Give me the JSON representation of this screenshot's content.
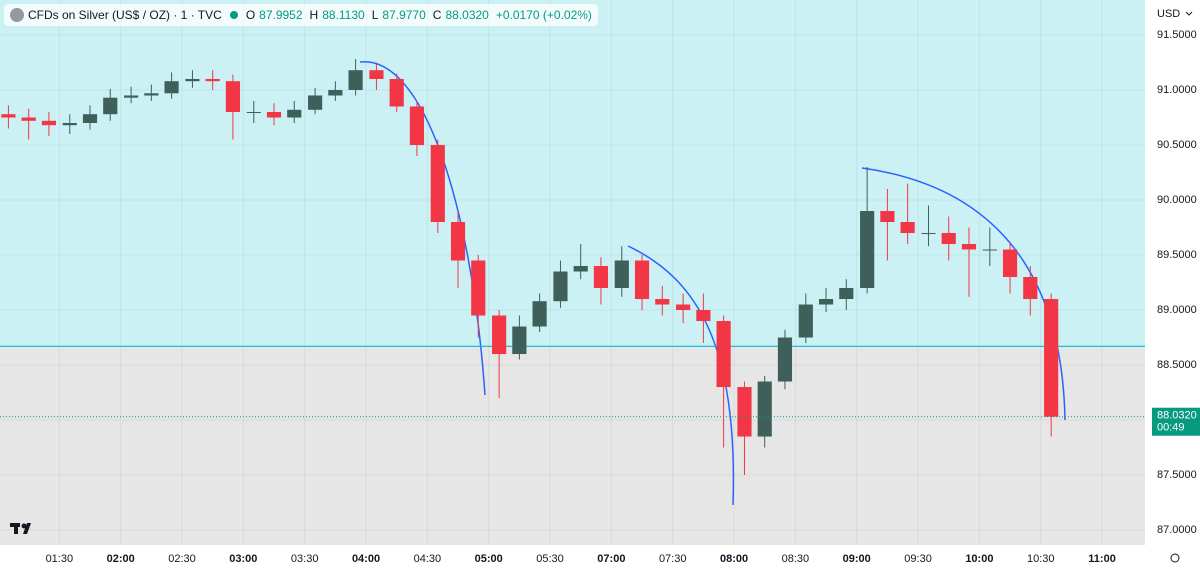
{
  "header": {
    "symbol": "CFDs on Silver (US$ / OZ) · 1 · TVC",
    "ohlc": [
      {
        "label": "O",
        "value": "87.9952"
      },
      {
        "label": "H",
        "value": "88.1130"
      },
      {
        "label": "L",
        "value": "87.9770"
      },
      {
        "label": "C",
        "value": "88.0320"
      }
    ],
    "change": "+0.0170 (+0.02%)",
    "currency": "USD"
  },
  "chart_data": {
    "type": "candlestick",
    "x": [
      0.17,
      0.5,
      0.83,
      1.17,
      1.5,
      1.83,
      2.17,
      2.5,
      2.83,
      3.17,
      3.5,
      3.83,
      4.17,
      4.5,
      4.83,
      5.17,
      5.5,
      5.83,
      6.17,
      6.5,
      6.83,
      7.17,
      7.5,
      7.83,
      8.17,
      8.5,
      8.83,
      9.17,
      9.5,
      9.83,
      10.17,
      10.5,
      10.83,
      11.17,
      11.5,
      11.83,
      12.17,
      12.5,
      12.83,
      13.17,
      13.5,
      13.83,
      14.17,
      14.5,
      14.83,
      15.17,
      15.5,
      15.83,
      16.17,
      16.5,
      16.83,
      17.17
    ],
    "open": [
      90.78,
      90.75,
      90.72,
      90.68,
      90.7,
      90.78,
      90.93,
      90.95,
      90.97,
      91.08,
      91.1,
      91.08,
      90.8,
      90.8,
      90.75,
      90.82,
      90.95,
      91.0,
      91.18,
      91.1,
      90.85,
      90.5,
      89.8,
      89.45,
      88.95,
      88.6,
      88.85,
      89.08,
      89.35,
      89.4,
      89.2,
      89.45,
      89.1,
      89.05,
      89.0,
      88.9,
      88.3,
      87.85,
      88.35,
      88.75,
      89.05,
      89.1,
      89.2,
      89.9,
      89.8,
      89.7,
      89.7,
      89.6,
      89.55,
      89.55,
      89.3,
      89.1
    ],
    "high": [
      90.86,
      90.83,
      90.8,
      90.78,
      90.86,
      91.01,
      91.03,
      91.05,
      91.16,
      91.18,
      91.18,
      91.14,
      90.9,
      90.88,
      90.9,
      91.02,
      91.08,
      91.28,
      91.25,
      91.15,
      90.9,
      90.55,
      89.9,
      89.5,
      89.0,
      88.95,
      89.15,
      89.45,
      89.6,
      89.48,
      89.58,
      89.5,
      89.22,
      89.15,
      89.15,
      88.95,
      88.35,
      88.4,
      88.82,
      89.15,
      89.2,
      89.28,
      90.3,
      90.1,
      90.15,
      89.95,
      89.85,
      89.75,
      89.75,
      89.62,
      89.4,
      89.15
    ],
    "low": [
      90.65,
      90.55,
      90.58,
      90.6,
      90.64,
      90.72,
      90.88,
      90.9,
      90.92,
      91.02,
      91.0,
      90.55,
      90.7,
      90.68,
      90.7,
      90.78,
      90.9,
      90.95,
      91.0,
      90.8,
      90.4,
      89.7,
      89.2,
      88.75,
      88.2,
      88.55,
      88.8,
      89.02,
      89.28,
      89.05,
      89.12,
      89.0,
      88.95,
      88.88,
      88.7,
      87.75,
      87.5,
      87.75,
      88.28,
      88.7,
      88.98,
      89.0,
      89.15,
      89.45,
      89.6,
      89.58,
      89.45,
      89.12,
      89.4,
      89.15,
      88.95,
      87.85
    ],
    "close": [
      90.75,
      90.72,
      90.68,
      90.7,
      90.78,
      90.93,
      90.95,
      90.97,
      91.08,
      91.1,
      91.08,
      90.8,
      90.8,
      90.75,
      90.82,
      90.95,
      91.0,
      91.18,
      91.1,
      90.85,
      90.5,
      89.8,
      89.45,
      88.95,
      88.6,
      88.85,
      89.08,
      89.35,
      89.4,
      89.2,
      89.45,
      89.1,
      89.05,
      89.0,
      88.9,
      88.3,
      87.85,
      88.35,
      88.75,
      89.05,
      89.1,
      89.2,
      89.9,
      89.8,
      89.7,
      89.7,
      89.6,
      89.55,
      89.55,
      89.3,
      89.1,
      88.03
    ],
    "up_color": "#3f5f5a",
    "down_color": "#f23645",
    "xlim": [
      0,
      18.7
    ],
    "ylim": [
      86.864,
      91.818
    ],
    "xticks": [
      {
        "value": 1,
        "label": "01:30"
      },
      {
        "value": 2,
        "label": "02:00"
      },
      {
        "value": 3,
        "label": "02:30"
      },
      {
        "value": 4,
        "label": "03:00"
      },
      {
        "value": 5,
        "label": "03:30"
      },
      {
        "value": 6,
        "label": "04:00"
      },
      {
        "value": 7,
        "label": "04:30"
      },
      {
        "value": 8,
        "label": "05:00"
      },
      {
        "value": 9,
        "label": "05:30"
      },
      {
        "value": 10,
        "label": "07:00"
      },
      {
        "value": 11,
        "label": "07:30"
      },
      {
        "value": 12,
        "label": "08:00"
      },
      {
        "value": 13,
        "label": "08:30"
      },
      {
        "value": 14,
        "label": "09:00"
      },
      {
        "value": 15,
        "label": "09:30"
      },
      {
        "value": 16,
        "label": "10:00"
      },
      {
        "value": 17,
        "label": "10:30"
      },
      {
        "value": 18,
        "label": "11:00"
      }
    ],
    "yticks": [
      {
        "value": 91.5,
        "label": "91.5000"
      },
      {
        "value": 91,
        "label": "91.0000"
      },
      {
        "value": 90.5,
        "label": "90.5000"
      },
      {
        "value": 90,
        "label": "90.0000"
      },
      {
        "value": 89.5,
        "label": "89.5000"
      },
      {
        "value": 89,
        "label": "89.0000"
      },
      {
        "value": 88.5,
        "label": "88.5000"
      },
      {
        "value": 88,
        "label": "88.0000"
      },
      {
        "value": 87.5,
        "label": "87.5000"
      },
      {
        "value": 87,
        "label": "87.0000"
      }
    ],
    "horizontal_line": 88.67,
    "above_color": "#cbf1f4",
    "below_color": "#e6e6e6",
    "last_price_label": "88.0320",
    "countdown": "00:49",
    "grid": true
  }
}
